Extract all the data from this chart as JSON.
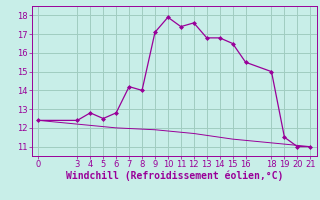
{
  "title": "",
  "xlabel": "Windchill (Refroidissement éolien,°C)",
  "ylabel": "",
  "bg_color": "#c8eee8",
  "grid_color": "#a0ccc0",
  "line_color": "#990099",
  "xlim": [
    -0.5,
    21.5
  ],
  "ylim": [
    10.5,
    18.5
  ],
  "yticks": [
    11,
    12,
    13,
    14,
    15,
    16,
    17,
    18
  ],
  "xticks": [
    0,
    3,
    4,
    5,
    6,
    7,
    8,
    9,
    10,
    11,
    12,
    13,
    14,
    15,
    16,
    18,
    19,
    20,
    21
  ],
  "main_x": [
    0,
    3,
    4,
    5,
    6,
    7,
    8,
    9,
    10,
    11,
    12,
    13,
    14,
    15,
    16,
    18,
    19,
    20,
    21
  ],
  "main_y": [
    12.4,
    12.4,
    12.8,
    12.5,
    12.8,
    14.2,
    14.0,
    17.1,
    17.9,
    17.4,
    17.6,
    16.8,
    16.8,
    16.5,
    15.5,
    15.0,
    11.5,
    11.0,
    11.0
  ],
  "ref_x": [
    0,
    3,
    6,
    9,
    12,
    15,
    18,
    21
  ],
  "ref_y": [
    12.4,
    12.2,
    12.0,
    11.9,
    11.7,
    11.4,
    11.2,
    11.0
  ],
  "xlabel_fontsize": 7,
  "tick_fontsize": 6
}
